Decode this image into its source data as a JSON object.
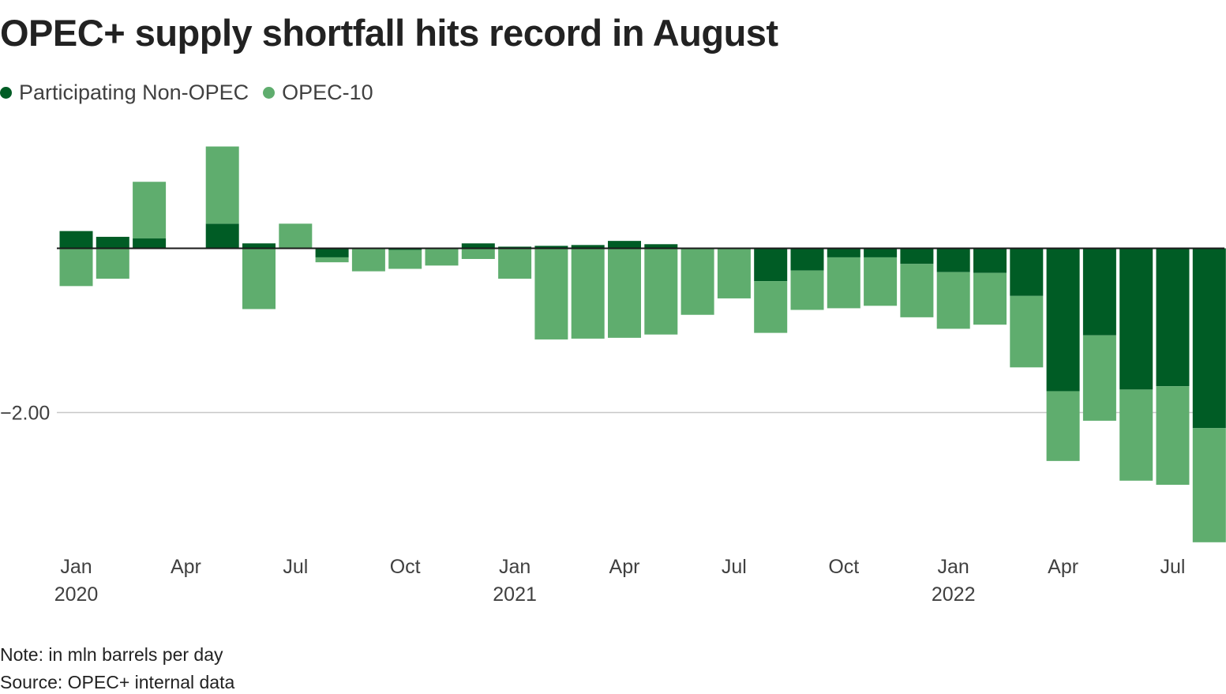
{
  "chart_data": {
    "type": "bar",
    "stacked": true,
    "title": "OPEC+ supply shortfall hits record in August",
    "unit_note": "Note: in mln barrels per day",
    "source": "Source: OPEC+ internal data",
    "ylabel": "",
    "ylim": [
      -3.7,
      1.35
    ],
    "y_ticks": [
      {
        "value": -2.0,
        "label": "−2.00"
      }
    ],
    "x_ticks": [
      {
        "index": 0,
        "label": "Jan",
        "sublabel": "2020"
      },
      {
        "index": 3,
        "label": "Apr",
        "sublabel": ""
      },
      {
        "index": 6,
        "label": "Jul",
        "sublabel": ""
      },
      {
        "index": 9,
        "label": "Oct",
        "sublabel": ""
      },
      {
        "index": 12,
        "label": "Jan",
        "sublabel": "2021"
      },
      {
        "index": 15,
        "label": "Apr",
        "sublabel": ""
      },
      {
        "index": 18,
        "label": "Jul",
        "sublabel": ""
      },
      {
        "index": 21,
        "label": "Oct",
        "sublabel": ""
      },
      {
        "index": 24,
        "label": "Jan",
        "sublabel": "2022"
      },
      {
        "index": 27,
        "label": "Apr",
        "sublabel": ""
      },
      {
        "index": 30,
        "label": "Jul",
        "sublabel": ""
      }
    ],
    "categories": [
      "Jan 2020",
      "Feb 2020",
      "Mar 2020",
      "Apr 2020",
      "May 2020",
      "Jun 2020",
      "Jul 2020",
      "Aug 2020",
      "Sep 2020",
      "Oct 2020",
      "Nov 2020",
      "Dec 2020",
      "Jan 2021",
      "Feb 2021",
      "Mar 2021",
      "Apr 2021",
      "May 2021",
      "Jun 2021",
      "Jul 2021",
      "Aug 2021",
      "Sep 2021",
      "Oct 2021",
      "Nov 2021",
      "Dec 2021",
      "Jan 2022",
      "Feb 2022",
      "Mar 2022",
      "Apr 2022",
      "May 2022",
      "Jun 2022",
      "Jul 2022",
      "Aug 2022"
    ],
    "series": [
      {
        "name": "Participating Non-OPEC",
        "color": "#005c25",
        "values": [
          0.21,
          0.14,
          0.12,
          0,
          0.3,
          0.06,
          0,
          -0.11,
          0,
          -0.02,
          0,
          0.06,
          0.02,
          0.03,
          0.04,
          0.09,
          0.05,
          0,
          0,
          -0.4,
          -0.27,
          -0.11,
          -0.11,
          -0.19,
          -0.29,
          -0.3,
          -0.58,
          -1.74,
          -1.06,
          -1.72,
          -1.68,
          -2.19
        ]
      },
      {
        "name": "OPEC-10",
        "color": "#5fad6e",
        "values": [
          -0.46,
          -0.37,
          0.69,
          0,
          0.94,
          -0.74,
          0.3,
          -0.06,
          -0.28,
          -0.23,
          -0.21,
          -0.13,
          -0.37,
          -1.11,
          -1.1,
          -1.09,
          -1.05,
          -0.81,
          -0.61,
          -0.63,
          -0.48,
          -0.62,
          -0.59,
          -0.65,
          -0.69,
          -0.63,
          -0.87,
          -0.85,
          -1.04,
          -1.11,
          -1.2,
          -1.39
        ]
      }
    ]
  }
}
